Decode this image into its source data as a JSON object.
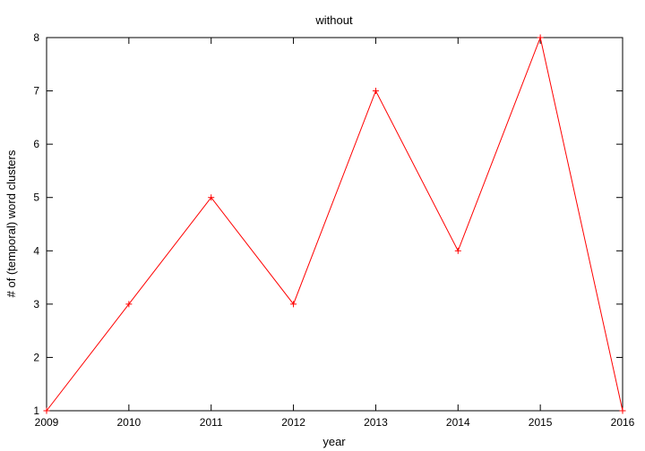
{
  "chart_data": {
    "type": "line",
    "title": "without",
    "xlabel": "year",
    "ylabel": "# of (temporal) word clusters",
    "x": [
      2009,
      2010,
      2011,
      2012,
      2013,
      2014,
      2015,
      2016
    ],
    "series": [
      {
        "values": [
          1,
          3,
          5,
          3,
          7,
          4,
          8,
          1
        ],
        "color": "#ff0000"
      }
    ],
    "xlim": [
      2009,
      2016
    ],
    "ylim": [
      1,
      8
    ],
    "xticks": [
      "2009",
      "2010",
      "2011",
      "2012",
      "2013",
      "2014",
      "2015",
      "2016"
    ],
    "yticks": [
      "1",
      "2",
      "3",
      "4",
      "5",
      "6",
      "7",
      "8"
    ],
    "grid": false,
    "marker": "plus"
  }
}
